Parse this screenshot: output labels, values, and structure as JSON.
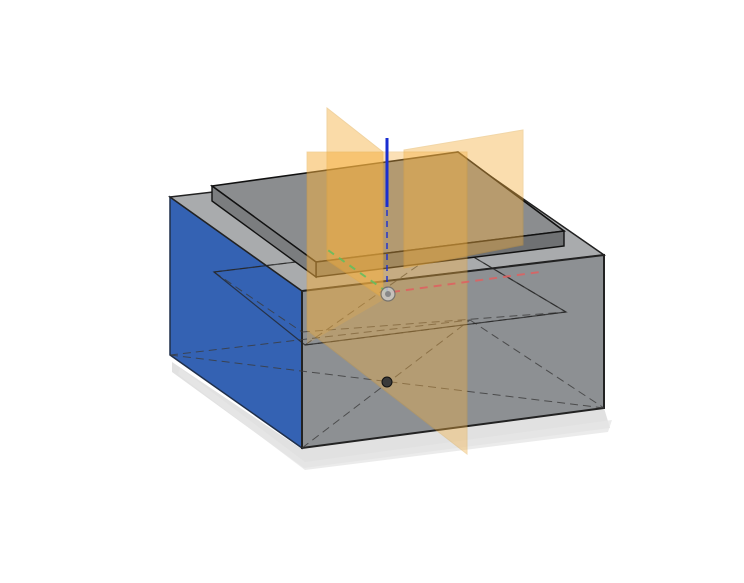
{
  "viewport": {
    "background": "#ffffff",
    "model": "box-with-raised-plate",
    "colors": {
      "side_face": "#3560b0",
      "front_face": "#8d9093",
      "right_face": "#6d7a88",
      "top_plate": "#8b8d8f",
      "origin_plane": "#f5b041",
      "z_axis": "#1a2ed1",
      "x_axis": "#e06060",
      "y_axis": "#5fbf5f",
      "shadow": "#d0d0d0"
    }
  }
}
